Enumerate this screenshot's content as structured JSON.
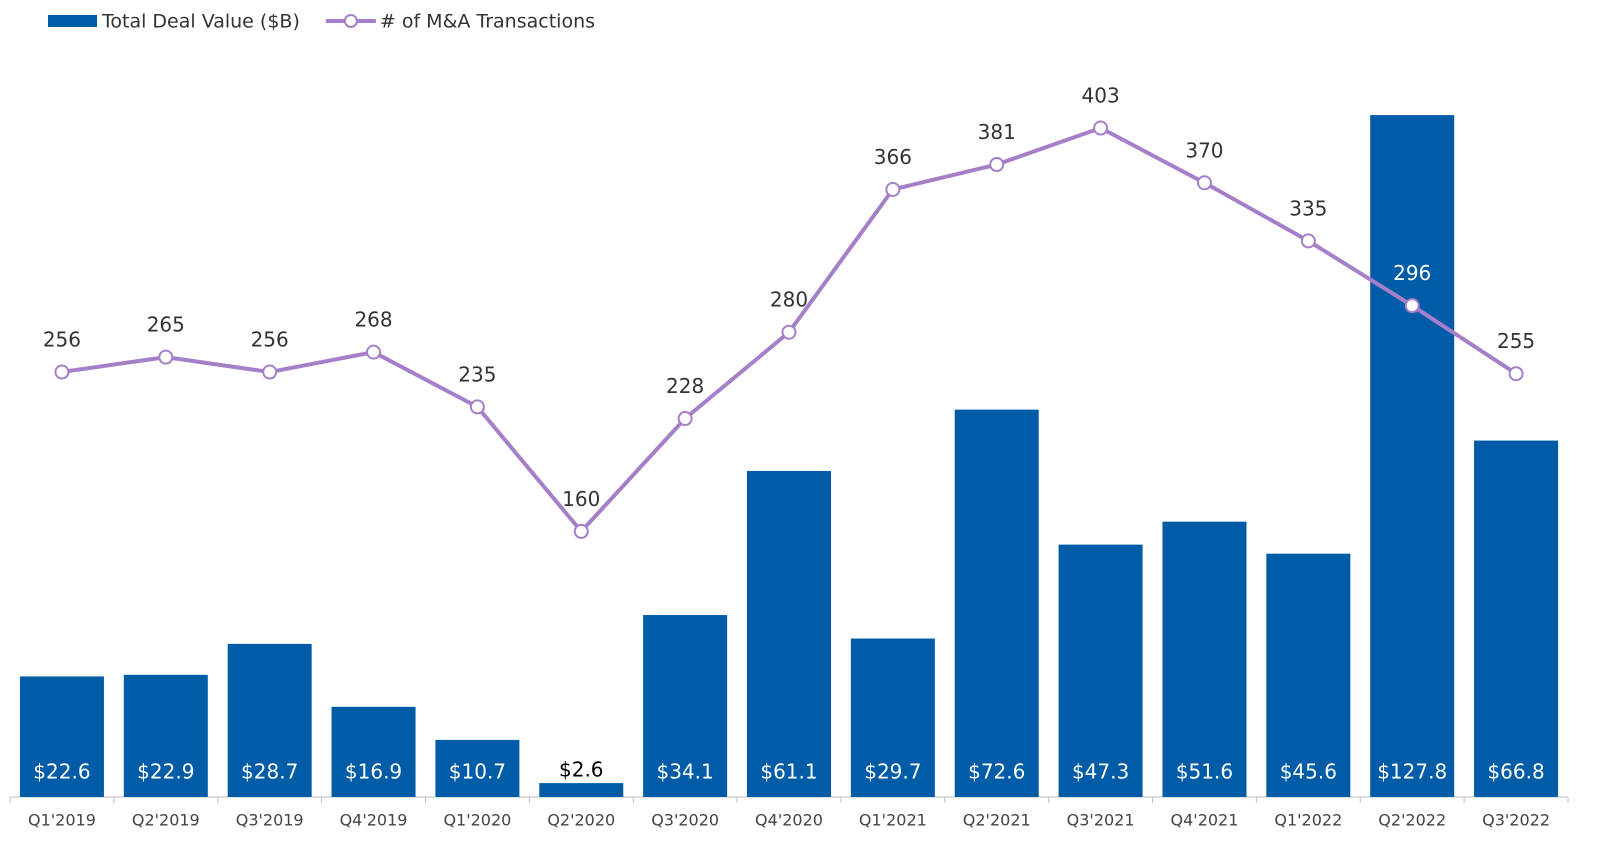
{
  "chart_data": {
    "type": "bar+line",
    "categories": [
      "Q1'2019",
      "Q2'2019",
      "Q3'2019",
      "Q4'2019",
      "Q1'2020",
      "Q2'2020",
      "Q3'2020",
      "Q4'2020",
      "Q1'2021",
      "Q2'2021",
      "Q3'2021",
      "Q4'2021",
      "Q1'2022",
      "Q2'2022",
      "Q3'2022"
    ],
    "series": [
      {
        "name": "Total Deal Value ($B)",
        "type": "bar",
        "color": "#005ca6",
        "values": [
          22.6,
          22.9,
          28.7,
          16.9,
          10.7,
          2.6,
          34.1,
          61.1,
          29.7,
          72.6,
          47.3,
          51.6,
          45.6,
          127.8,
          66.8
        ],
        "value_labels": [
          "$22.6",
          "$22.9",
          "$28.7",
          "$16.9",
          "$10.7",
          "$2.6",
          "$34.1",
          "$61.1",
          "$29.7",
          "$72.6",
          "$47.3",
          "$51.6",
          "$45.6",
          "$127.8",
          "$66.8"
        ]
      },
      {
        "name": "# of M&A Transactions",
        "type": "line",
        "axis": "y2",
        "color": "#a67fc9",
        "values": [
          256,
          265,
          256,
          268,
          235,
          160,
          228,
          280,
          366,
          381,
          403,
          370,
          335,
          296,
          255
        ]
      }
    ],
    "ylim": [
      0,
      140
    ],
    "y2lim": [
      0,
      450
    ],
    "legend": "top-left"
  }
}
